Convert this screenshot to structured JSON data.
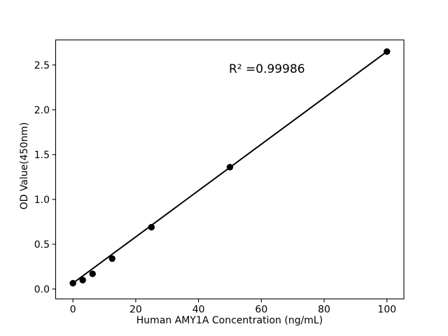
{
  "figure": {
    "background": "#ffffff"
  },
  "chart_data": {
    "type": "scatter",
    "title": "",
    "xlabel": "Human AMY1A Concentration (ng/mL)",
    "ylabel": "OD Value(450nm)",
    "points": {
      "x": [
        0,
        3.125,
        6.25,
        12.5,
        25,
        50,
        100
      ],
      "y": [
        0.065,
        0.1,
        0.17,
        0.34,
        0.69,
        1.36,
        2.65
      ]
    },
    "fit_line": {
      "x": [
        0,
        100
      ],
      "y": [
        0.065,
        2.65
      ]
    },
    "annotation": {
      "text": "R² =0.99986",
      "x": 49.6,
      "y": 2.4
    },
    "xticks": {
      "values": [
        0,
        20,
        40,
        60,
        80,
        100
      ],
      "labels": [
        "0",
        "20",
        "40",
        "60",
        "80",
        "100"
      ]
    },
    "yticks": {
      "values": [
        0,
        0.5,
        1.0,
        1.5,
        2.0,
        2.5
      ],
      "labels": [
        "0.0",
        "0.5",
        "1.0",
        "1.5",
        "2.0",
        "2.5"
      ]
    },
    "xlim": [
      -5.5,
      105.4
    ],
    "ylim": [
      -0.11,
      2.78
    ],
    "grid": false,
    "legend": null,
    "colors": {
      "marker": "#000000",
      "line": "#000000",
      "axis": "#000000",
      "text": "#000000",
      "background": "#ffffff"
    }
  }
}
